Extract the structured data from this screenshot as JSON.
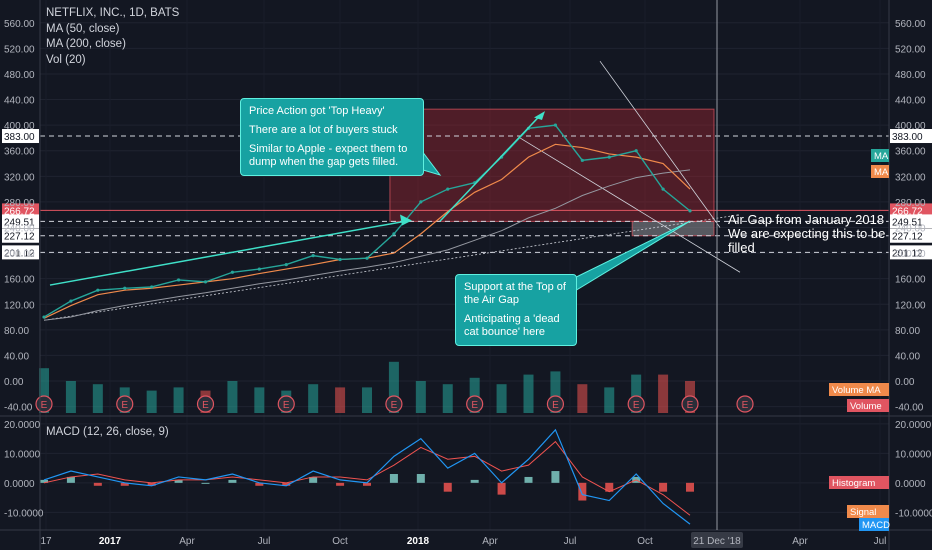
{
  "chart_data": {
    "type": "line",
    "title": "NETFLIX, INC., 1D, BATS",
    "indicators": [
      "MA (50, close)",
      "MA (200, close)",
      "Vol (20)"
    ],
    "x_tick_labels": [
      "17",
      "2017",
      "Apr",
      "Jul",
      "Oct",
      "2018",
      "Apr",
      "Jul",
      "Oct",
      "21 Dec '18",
      "Apr",
      "Jul"
    ],
    "price_axis": {
      "ticks": [
        "560.00",
        "520.00",
        "480.00",
        "440.00",
        "400.00",
        "360.00",
        "320.00",
        "280.00",
        "240.00",
        "200.00",
        "160.00",
        "120.00",
        "80.00",
        "40.00",
        "0.00",
        "-40.00"
      ],
      "range": [
        -50,
        580
      ]
    },
    "price_levels": [
      {
        "label": "383.00",
        "value": 383.0
      },
      {
        "label": "266.72",
        "value": 266.72
      },
      {
        "label": "249.51",
        "value": 249.51
      },
      {
        "label": "227.12",
        "value": 227.12
      },
      {
        "label": "201.12",
        "value": 201.12
      }
    ],
    "price_series": {
      "name": "Close",
      "x": [
        "2016-12",
        "2017-01",
        "2017-02",
        "2017-03",
        "2017-04",
        "2017-05",
        "2017-06",
        "2017-07",
        "2017-08",
        "2017-09",
        "2017-10",
        "2017-11",
        "2017-12",
        "2018-01",
        "2018-02",
        "2018-03",
        "2018-04",
        "2018-05",
        "2018-06",
        "2018-07",
        "2018-08",
        "2018-09",
        "2018-10",
        "2018-11",
        "2018-12"
      ],
      "values": [
        100,
        125,
        142,
        145,
        147,
        158,
        155,
        170,
        175,
        182,
        196,
        190,
        192,
        230,
        280,
        300,
        310,
        350,
        395,
        400,
        345,
        350,
        360,
        300,
        266
      ]
    },
    "ma50": [
      98,
      118,
      135,
      142,
      145,
      150,
      155,
      160,
      168,
      175,
      182,
      190,
      192,
      200,
      230,
      265,
      295,
      315,
      350,
      370,
      365,
      355,
      350,
      340,
      300
    ],
    "ma200": [
      95,
      100,
      110,
      118,
      125,
      132,
      138,
      145,
      152,
      158,
      165,
      172,
      178,
      185,
      195,
      205,
      220,
      235,
      255,
      270,
      290,
      305,
      318,
      325,
      330
    ],
    "volume": [
      14,
      10,
      9,
      8,
      7,
      8,
      7,
      10,
      8,
      7,
      9,
      8,
      8,
      16,
      10,
      9,
      11,
      9,
      12,
      13,
      9,
      8,
      12,
      12,
      10
    ],
    "earnings_labels": [
      "E",
      "E",
      "E",
      "E",
      "E",
      "E",
      "E",
      "E",
      "E",
      "E"
    ],
    "macd_axis": {
      "ticks": [
        "20.0000",
        "10.0000",
        "0.0000",
        "-10.0000"
      ],
      "range": [
        -16,
        22
      ]
    },
    "macd": {
      "title": "MACD (12, 26, close, 9)",
      "macd": [
        1,
        4,
        2,
        0,
        -1,
        2,
        1,
        3,
        0,
        -1,
        4,
        1,
        0,
        9,
        15,
        5,
        10,
        0,
        8,
        18,
        -4,
        -6,
        3,
        -7,
        -14
      ],
      "signal": [
        0,
        2,
        3,
        1,
        0,
        1,
        1,
        2,
        1,
        0,
        2,
        2,
        1,
        6,
        12,
        8,
        9,
        4,
        6,
        14,
        2,
        -3,
        1,
        -4,
        -11
      ],
      "histogram": [
        1,
        2,
        -1,
        -1,
        -1,
        1,
        0,
        1,
        -1,
        -1,
        2,
        -1,
        -1,
        3,
        3,
        -3,
        1,
        -4,
        2,
        4,
        -6,
        -3,
        2,
        -3,
        -3
      ]
    },
    "zones": [
      {
        "name": "top-heavy-zone",
        "from": "2018-01",
        "to": "2018-12",
        "low": 249.51,
        "high": 425
      },
      {
        "name": "air-gap-zone",
        "from": "2018-10",
        "to": "2018-12",
        "low": 227.12,
        "high": 249.51
      }
    ],
    "legend_labels": {
      "ma": "MA",
      "volume_ma": "Volume MA",
      "volume": "Volume",
      "histogram": "Histogram",
      "signal": "Signal",
      "macd": "MACD"
    }
  },
  "annotations": {
    "top_heavy": [
      "Price Action got 'Top Heavy'",
      "There are a lot of buyers stuck",
      "Similar to Apple - expect them to dump when the gap gets filled."
    ],
    "support": [
      "Support at the Top of the Air Gap",
      "Anticipating a 'dead cat bounce' here"
    ],
    "air_gap": [
      "Air Gap from January 2018",
      "We are expecting this to be filled"
    ]
  },
  "colors": {
    "background": "#131722",
    "price": "#26a69a",
    "ma50": "#f08a4b",
    "ma200": "#9598a1",
    "macd": "#2196f3",
    "signal": "#ef5350",
    "hist_up": "#80cbc4",
    "hist_down": "#ef5350",
    "zone": "#b22833",
    "note": "#17a2a2",
    "arrow": "#3fe0c8"
  }
}
